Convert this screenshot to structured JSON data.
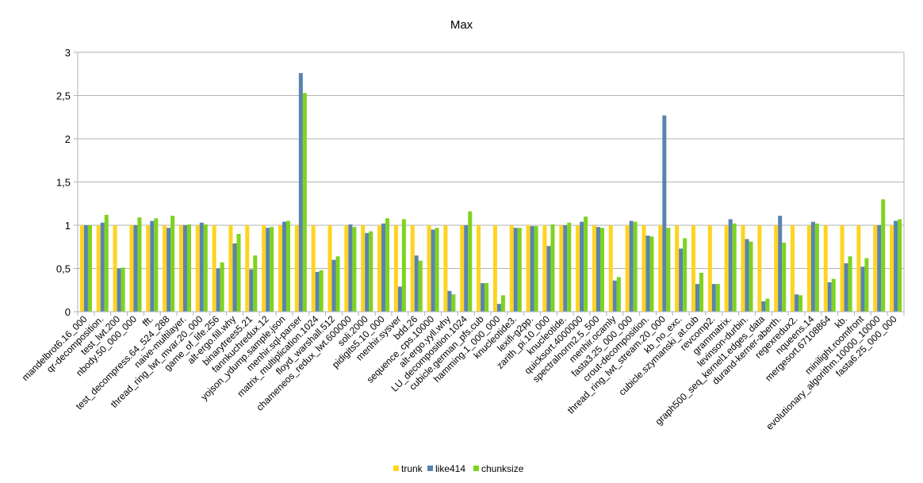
{
  "chart_data": {
    "type": "bar",
    "title": "Max",
    "xlabel": "",
    "ylabel": "",
    "ylim": [
      0,
      3
    ],
    "yticks": [
      0,
      0.5,
      1,
      1.5,
      2,
      2.5,
      3
    ],
    "ytick_labels": [
      "0",
      "0,5",
      "1",
      "1,5",
      "2",
      "2,5",
      "3"
    ],
    "grid": true,
    "legend_position": "bottom",
    "categories": [
      "mandelbrot6.16_000",
      "qr-decomposition.",
      "test_lwt.200",
      "nbody.50_000_000",
      "fft.",
      "test_decompress.64_524_288",
      "naive-multilayer.",
      "thread_ring_lwt_mvar.20_000",
      "game_of_life.256",
      "alt-ergo.fill.why",
      "binarytrees5.21",
      "fannkuchredux.12",
      "yojson_ydump.sample.json",
      "menhir.sql-parser",
      "matrix_multiplication.1024",
      "floyd_warshall.512",
      "chameneos_redux_lwt.600000",
      "soli.2000",
      "pidigits5.10_000",
      "menhir.sysver",
      "bdd.26",
      "sequence_cps.10000",
      "alt-ergo.yyll.why",
      "LU_decomposition.1024",
      "cubicle.german_pfs.cub",
      "hamming.1_000_000",
      "knucleotide3.",
      "lexifi-g2pp.",
      "zarith_pi.10_000",
      "knucleotide.",
      "quicksort.4000000",
      "spectralnorm2.5_500",
      "menhir.ocamly",
      "fasta3.25_000_000",
      "crout-decomposition.",
      "thread_ring_lwt_stream.20_000",
      "kb_no_exc.",
      "cubicle.szymanski_at.cub",
      "revcomp2.",
      "grammatrix.",
      "levinson-durbin.",
      "graph500_seq_kernel1.edges_data",
      "durand-kerner-aberth.",
      "regexredux2.",
      "nqueens.14",
      "mergesort.67108864",
      "kb.",
      "minilight.roomfront",
      "evolutionary_algorithm.10000_10000",
      "fasta6.25_000_000"
    ],
    "series": [
      {
        "name": "trunk",
        "color": "#ffd320",
        "values": [
          1,
          1,
          1,
          1,
          1,
          1,
          1,
          1,
          1,
          1,
          1,
          1,
          1,
          1,
          1,
          1,
          1,
          1,
          1,
          1,
          1,
          1,
          1,
          1,
          1,
          1,
          1,
          1,
          1,
          1,
          1,
          1,
          1,
          1,
          1,
          1,
          1,
          1,
          1,
          1,
          1,
          1,
          1,
          1,
          1,
          1,
          1,
          1,
          1,
          1
        ]
      },
      {
        "name": "like414",
        "color": "#5983b0",
        "values": [
          1,
          1.03,
          0.5,
          1.0,
          1.05,
          0.97,
          1.0,
          1.03,
          0.5,
          0.79,
          0.49,
          0.97,
          1.04,
          2.76,
          0.46,
          0.6,
          1.01,
          0.91,
          1.02,
          0.29,
          0.65,
          0.95,
          0.24,
          1.0,
          0.33,
          0.09,
          0.97,
          0.99,
          0.76,
          1.0,
          1.04,
          0.98,
          0.36,
          1.05,
          0.88,
          2.27,
          0.73,
          0.32,
          0.32,
          1.07,
          0.84,
          0.12,
          1.11,
          0.2,
          1.04,
          0.34,
          0.56,
          0.52,
          1.0,
          1.05
        ]
      },
      {
        "name": "chunksize",
        "color": "#7ed31e",
        "values": [
          1,
          1.12,
          0.51,
          1.09,
          1.08,
          1.11,
          1.01,
          1.01,
          0.57,
          0.9,
          0.65,
          0.98,
          1.05,
          2.53,
          0.48,
          0.64,
          0.98,
          0.93,
          1.08,
          1.07,
          0.59,
          0.97,
          0.2,
          1.16,
          0.33,
          0.19,
          0.97,
          0.99,
          1.01,
          1.03,
          1.1,
          0.97,
          0.4,
          1.04,
          0.87,
          0.97,
          0.85,
          0.45,
          0.32,
          1.02,
          0.81,
          0.15,
          0.8,
          0.19,
          1.02,
          0.38,
          0.64,
          0.62,
          1.3,
          1.07
        ]
      }
    ]
  }
}
